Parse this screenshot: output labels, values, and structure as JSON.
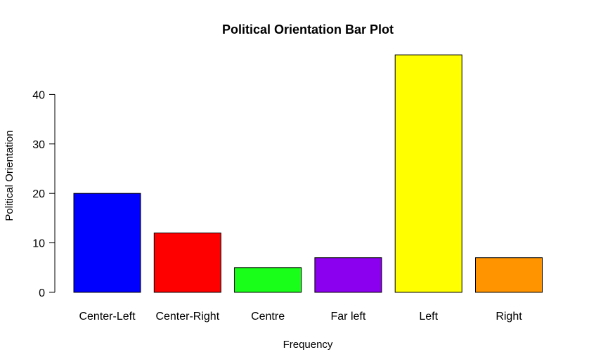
{
  "chart_data": {
    "type": "bar",
    "title": "Political Orientation Bar Plot",
    "xlabel": "Frequency",
    "ylabel": "Political Orientation",
    "categories": [
      "Center-Left",
      "Center-Right",
      "Centre",
      "Far left",
      "Left",
      "Right"
    ],
    "values": [
      20,
      12,
      5,
      7,
      48,
      7
    ],
    "colors": [
      "#0000ff",
      "#ff0000",
      "#1aff1a",
      "#8b00ee",
      "#ffff00",
      "#ff9400"
    ],
    "yticks": [
      0,
      10,
      20,
      30,
      40
    ],
    "ylim": [
      0,
      48
    ],
    "grid": false,
    "legend": "none"
  }
}
